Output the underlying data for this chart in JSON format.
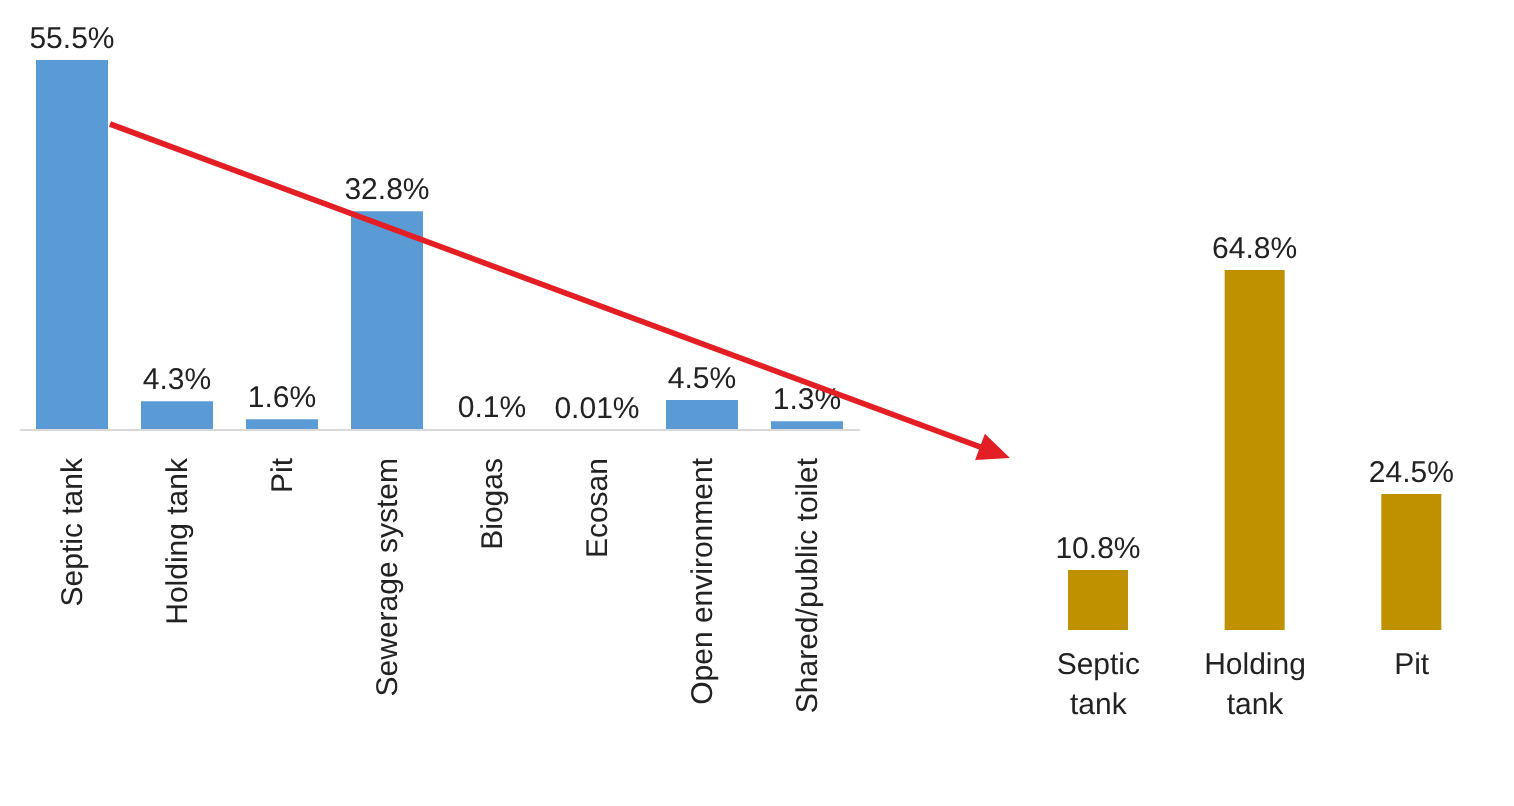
{
  "chart_data": [
    {
      "type": "bar",
      "categories": [
        "Septic tank",
        "Holding tank",
        "Pit",
        "Sewerage system",
        "Biogas",
        "Ecosan",
        "Open environment",
        "Shared/public toilet"
      ],
      "values": [
        55.5,
        4.3,
        1.6,
        32.8,
        0.1,
        0.01,
        4.5,
        1.3
      ],
      "color": "#5b9bd5",
      "value_labels": [
        "55.5%",
        "4.3%",
        "1.6%",
        "32.8%",
        "0.1%",
        "0.01%",
        "4.5%",
        "1.3%"
      ],
      "grid": false,
      "legend": false
    },
    {
      "type": "bar",
      "categories": [
        "Septic tank",
        "Holding tank",
        "Pit"
      ],
      "values": [
        10.8,
        64.8,
        24.5
      ],
      "color": "#bf9000",
      "value_labels": [
        "10.8%",
        "64.8%",
        "24.5%"
      ],
      "grid": false,
      "legend": false
    }
  ]
}
